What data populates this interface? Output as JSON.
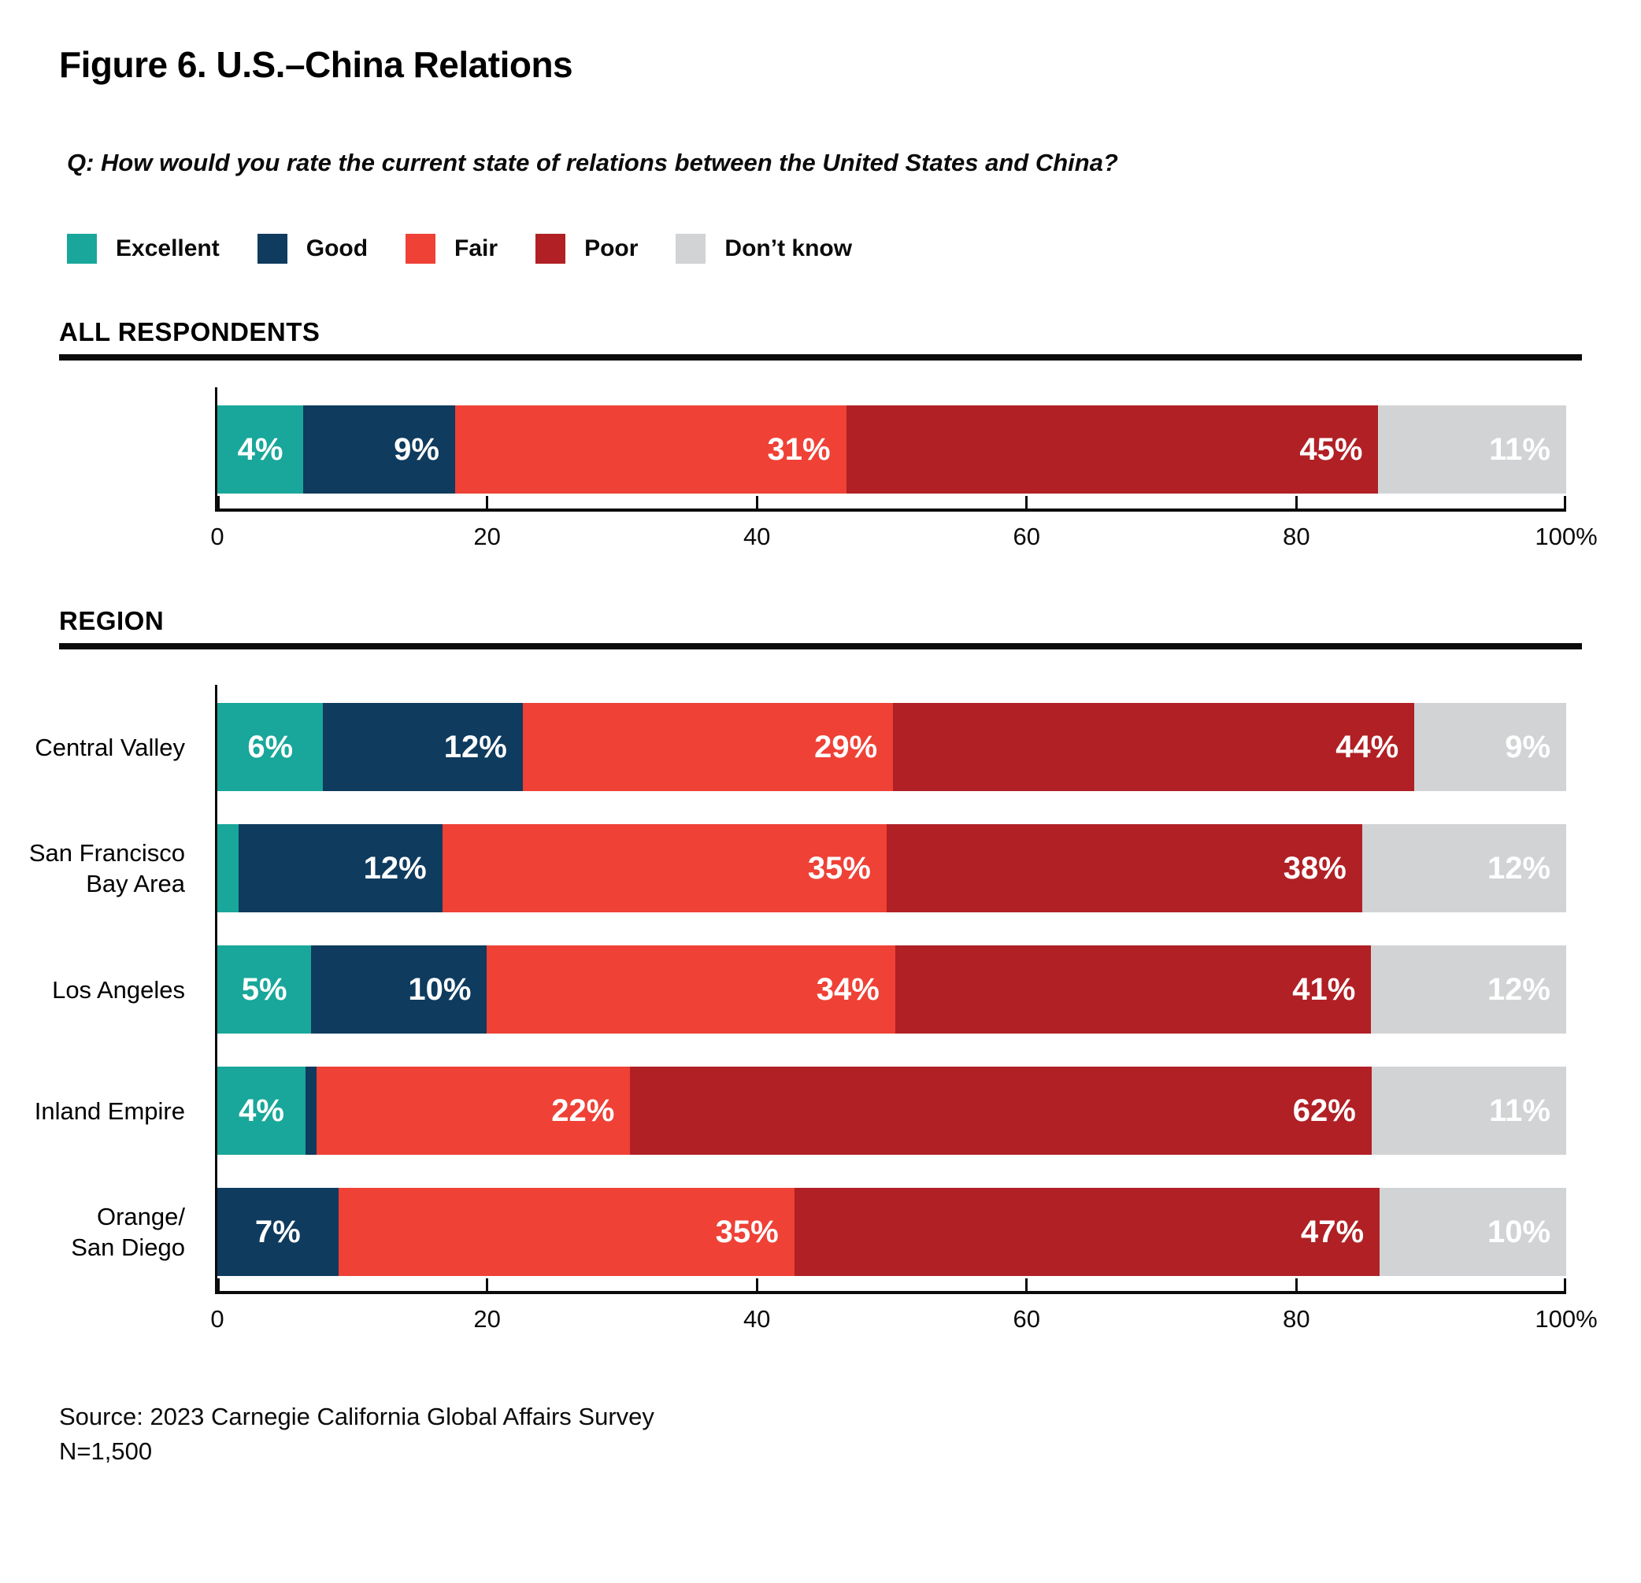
{
  "figure": {
    "title": "Figure 6. U.S.–China Relations",
    "question": "Q: How would you rate the current state of relations between the United States and China?"
  },
  "colors": {
    "excellent": "#18A79A",
    "good": "#0E3B5E",
    "fair": "#EF4136",
    "poor": "#B02025",
    "dont_know": "#D1D3D4",
    "axis": "#0B0B0B"
  },
  "legend": [
    {
      "key": "excellent",
      "label": "Excellent"
    },
    {
      "key": "good",
      "label": "Good"
    },
    {
      "key": "fair",
      "label": "Fair"
    },
    {
      "key": "poor",
      "label": "Poor"
    },
    {
      "key": "dont_know",
      "label": "Don’t know"
    }
  ],
  "axis_ticks": [
    "0",
    "20",
    "40",
    "60",
    "80",
    "100%"
  ],
  "sections": {
    "all_respondents": "ALL RESPONDENTS",
    "region": "REGION"
  },
  "charts": [
    {
      "id": "all",
      "rows": [
        {
          "label_lines": [],
          "segments": [
            {
              "key": "excellent",
              "value": 4,
              "label": "4%"
            },
            {
              "key": "good",
              "value": 9,
              "label": "9%"
            },
            {
              "key": "fair",
              "value": 31,
              "label": "31%"
            },
            {
              "key": "poor",
              "value": 45,
              "label": "45%"
            },
            {
              "key": "dont_know",
              "value": 11,
              "label": "11%"
            }
          ]
        }
      ]
    },
    {
      "id": "region",
      "rows": [
        {
          "label_lines": [
            "Central Valley"
          ],
          "segments": [
            {
              "key": "excellent",
              "value": 6,
              "label": "6%"
            },
            {
              "key": "good",
              "value": 12,
              "label": "12%"
            },
            {
              "key": "fair",
              "value": 29,
              "label": "29%"
            },
            {
              "key": "poor",
              "value": 44,
              "label": "44%"
            },
            {
              "key": "dont_know",
              "value": 9,
              "label": "9%"
            }
          ]
        },
        {
          "label_lines": [
            "San Francisco",
            "Bay Area"
          ],
          "segments": [
            {
              "key": "excellent",
              "value": 2,
              "label": ""
            },
            {
              "key": "good",
              "value": 12,
              "label": "12%"
            },
            {
              "key": "fair",
              "value": 35,
              "label": "35%"
            },
            {
              "key": "poor",
              "value": 38,
              "label": "38%"
            },
            {
              "key": "dont_know",
              "value": 12,
              "label": "12%"
            }
          ]
        },
        {
          "label_lines": [
            "Los Angeles"
          ],
          "segments": [
            {
              "key": "excellent",
              "value": 5,
              "label": "5%"
            },
            {
              "key": "good",
              "value": 10,
              "label": "10%"
            },
            {
              "key": "fair",
              "value": 34,
              "label": "34%"
            },
            {
              "key": "poor",
              "value": 41,
              "label": "41%"
            },
            {
              "key": "dont_know",
              "value": 12,
              "label": "12%"
            }
          ]
        },
        {
          "label_lines": [
            "Inland Empire"
          ],
          "segments": [
            {
              "key": "excellent",
              "value": 4,
              "label": "4%"
            },
            {
              "key": "good",
              "value": 1,
              "label": ""
            },
            {
              "key": "fair",
              "value": 22,
              "label": "22%"
            },
            {
              "key": "poor",
              "value": 62,
              "label": "62%"
            },
            {
              "key": "dont_know",
              "value": 11,
              "label": "11%"
            }
          ]
        },
        {
          "label_lines": [
            "Orange/",
            "San Diego"
          ],
          "segments": [
            {
              "key": "excellent",
              "value": 0,
              "label": ""
            },
            {
              "key": "good",
              "value": 7,
              "label": "7%"
            },
            {
              "key": "fair",
              "value": 35,
              "label": "35%"
            },
            {
              "key": "poor",
              "value": 47,
              "label": "47%"
            },
            {
              "key": "dont_know",
              "value": 10,
              "label": "10%"
            }
          ]
        }
      ]
    }
  ],
  "chart_data": [
    {
      "type": "bar",
      "stacked": true,
      "orientation": "horizontal",
      "title": "ALL RESPONDENTS",
      "categories": [
        "All respondents"
      ],
      "series": [
        {
          "name": "Excellent",
          "values": [
            4
          ]
        },
        {
          "name": "Good",
          "values": [
            9
          ]
        },
        {
          "name": "Fair",
          "values": [
            31
          ]
        },
        {
          "name": "Poor",
          "values": [
            45
          ]
        },
        {
          "name": "Don’t know",
          "values": [
            11
          ]
        }
      ],
      "xlim": [
        0,
        100
      ],
      "xticks": [
        0,
        20,
        40,
        60,
        80,
        100
      ],
      "legend_position": "top",
      "grid": false
    },
    {
      "type": "bar",
      "stacked": true,
      "orientation": "horizontal",
      "title": "REGION",
      "categories": [
        "Central Valley",
        "San Francisco Bay Area",
        "Los Angeles",
        "Inland Empire",
        "Orange/San Diego"
      ],
      "series": [
        {
          "name": "Excellent",
          "values": [
            6,
            2,
            5,
            4,
            0
          ]
        },
        {
          "name": "Good",
          "values": [
            12,
            12,
            10,
            1,
            7
          ]
        },
        {
          "name": "Fair",
          "values": [
            29,
            35,
            34,
            22,
            35
          ]
        },
        {
          "name": "Poor",
          "values": [
            44,
            38,
            41,
            62,
            47
          ]
        },
        {
          "name": "Don’t know",
          "values": [
            9,
            12,
            12,
            11,
            10
          ]
        }
      ],
      "xlim": [
        0,
        100
      ],
      "xticks": [
        0,
        20,
        40,
        60,
        80,
        100
      ],
      "legend_position": "top",
      "grid": false
    }
  ],
  "source": {
    "line1": "Source: 2023 Carnegie California Global Affairs Survey",
    "line2": "N=1,500"
  }
}
